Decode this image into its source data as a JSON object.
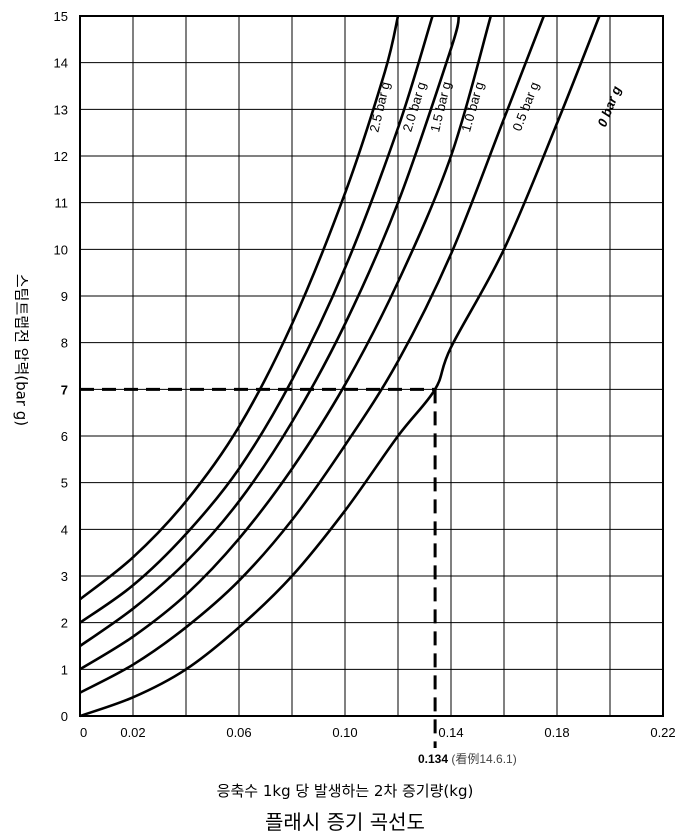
{
  "chart_data": {
    "type": "line",
    "title": "플래시 증기 곡선도",
    "xlabel": "응축수 1kg 당 발생하는 2차 증기량(kg)",
    "ylabel": "스팀트랩전 압력(bar g)",
    "xlim": [
      0,
      0.22
    ],
    "ylim": [
      0,
      15
    ],
    "x_ticks": [
      "0",
      "0.02",
      "0.06",
      "0.10",
      "0.14",
      "0.18",
      "0.22"
    ],
    "y_ticks": [
      "0",
      "1",
      "2",
      "3",
      "4",
      "5",
      "6",
      "7",
      "8",
      "9",
      "10",
      "11",
      "12",
      "13",
      "14",
      "15"
    ],
    "grid": true,
    "series": [
      {
        "name": "0 bar g",
        "y_at_x0": 0,
        "points": [
          [
            0,
            0
          ],
          [
            0.02,
            0.4
          ],
          [
            0.04,
            1.0
          ],
          [
            0.06,
            1.9
          ],
          [
            0.08,
            3.0
          ],
          [
            0.1,
            4.4
          ],
          [
            0.12,
            6.0
          ],
          [
            0.134,
            7.0
          ],
          [
            0.14,
            7.9
          ],
          [
            0.16,
            10.0
          ],
          [
            0.18,
            12.7
          ],
          [
            0.196,
            15.0
          ]
        ]
      },
      {
        "name": "0.5 bar g",
        "y_at_x0": 0.5,
        "points": [
          [
            0,
            0.5
          ],
          [
            0.02,
            1.1
          ],
          [
            0.04,
            1.9
          ],
          [
            0.06,
            2.9
          ],
          [
            0.08,
            4.2
          ],
          [
            0.1,
            5.8
          ],
          [
            0.12,
            7.6
          ],
          [
            0.14,
            9.9
          ],
          [
            0.16,
            12.8
          ],
          [
            0.175,
            15.0
          ]
        ]
      },
      {
        "name": "1.0 bar g",
        "y_at_x0": 1.0,
        "points": [
          [
            0,
            1.0
          ],
          [
            0.02,
            1.7
          ],
          [
            0.04,
            2.6
          ],
          [
            0.06,
            3.8
          ],
          [
            0.08,
            5.3
          ],
          [
            0.1,
            7.1
          ],
          [
            0.12,
            9.3
          ],
          [
            0.14,
            12.0
          ],
          [
            0.155,
            15.0
          ]
        ]
      },
      {
        "name": "1.5 bar g",
        "y_at_x0": 1.5,
        "points": [
          [
            0,
            1.5
          ],
          [
            0.02,
            2.3
          ],
          [
            0.04,
            3.3
          ],
          [
            0.06,
            4.6
          ],
          [
            0.08,
            6.3
          ],
          [
            0.1,
            8.4
          ],
          [
            0.12,
            11.0
          ],
          [
            0.14,
            14.3
          ],
          [
            0.143,
            15.0
          ]
        ]
      },
      {
        "name": "2.0 bar g",
        "y_at_x0": 2.0,
        "points": [
          [
            0,
            2.0
          ],
          [
            0.02,
            2.8
          ],
          [
            0.04,
            3.9
          ],
          [
            0.06,
            5.3
          ],
          [
            0.08,
            7.2
          ],
          [
            0.1,
            9.6
          ],
          [
            0.12,
            12.6
          ],
          [
            0.133,
            15.0
          ]
        ]
      },
      {
        "name": "2.5 bar g",
        "y_at_x0": 2.5,
        "points": [
          [
            0,
            2.5
          ],
          [
            0.02,
            3.4
          ],
          [
            0.04,
            4.6
          ],
          [
            0.06,
            6.2
          ],
          [
            0.08,
            8.4
          ],
          [
            0.1,
            11.2
          ],
          [
            0.115,
            13.8
          ],
          [
            0.12,
            15.0
          ]
        ]
      }
    ],
    "annotation": {
      "x_value": 0.134,
      "y_value": 7,
      "y_tick_label": "7",
      "x_label": "0.134",
      "x_note": "(看例14.6.1)"
    }
  }
}
